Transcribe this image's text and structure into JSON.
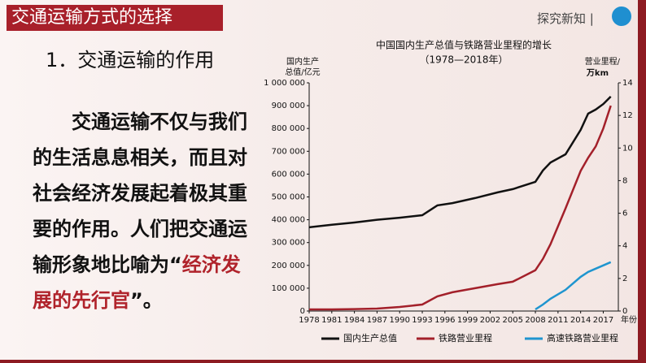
{
  "header": {
    "title": "交通运输方式的选择",
    "tag": "探究新知 |"
  },
  "section": "1．交通运输的作用",
  "paragraph": [
    [
      {
        "text": "交通运输不仅与我们",
        "color": "#111111"
      }
    ],
    [
      {
        "text": "的生活息息相关，而且对",
        "color": "#111111"
      }
    ],
    [
      {
        "text": "社会经济发展起着极其重",
        "color": "#111111"
      }
    ],
    [
      {
        "text": "要的作用。人们把交通运",
        "color": "#111111"
      }
    ],
    [
      {
        "text": "输形象地比喻为“",
        "color": "#111111"
      },
      {
        "text": "经济发",
        "color": "#b0232b"
      }
    ],
    [
      {
        "text": "展的先行官",
        "color": "#b0232b"
      },
      {
        "text": "”。",
        "color": "#111111"
      }
    ]
  ],
  "chart_data": {
    "type": "line",
    "title": "中国国内生产总值与铁路营业里程的增长",
    "subtitle": "（1978—2018年）",
    "ylabel": [
      "国内生产",
      "总值/亿元"
    ],
    "y2label": [
      "营业里程/",
      "万km"
    ],
    "xlabel": "年份",
    "x": [
      1978,
      1981,
      1984,
      1987,
      1990,
      1993,
      1995,
      1997,
      2000,
      2003,
      2005,
      2008,
      2009,
      2010,
      2012,
      2014,
      2015,
      2016,
      2017,
      2018
    ],
    "xlim": [
      1978,
      2019
    ],
    "xticks": [
      1978,
      1981,
      1984,
      1987,
      1990,
      1993,
      1996,
      1999,
      2002,
      2005,
      2008,
      2011,
      2014,
      2017
    ],
    "ylim": [
      0,
      1000000
    ],
    "yticks": [
      {
        "value": 0,
        "label": "0"
      },
      {
        "value": 100000,
        "label": "100 000"
      },
      {
        "value": 200000,
        "label": "200 000"
      },
      {
        "value": 300000,
        "label": "300 000"
      },
      {
        "value": 400000,
        "label": "400 000"
      },
      {
        "value": 500000,
        "label": "500 000"
      },
      {
        "value": 600000,
        "label": "600 000"
      },
      {
        "value": 700000,
        "label": "700 000"
      },
      {
        "value": 800000,
        "label": "800 000"
      },
      {
        "value": 900000,
        "label": "900 000"
      },
      {
        "value": 1000000,
        "label": "1 000 000"
      }
    ],
    "y2lim": [
      0,
      14
    ],
    "y2ticks": [
      0,
      2,
      4,
      6,
      8,
      10,
      12,
      14
    ],
    "series": [
      {
        "name": "国内生产总值",
        "color": "#111111",
        "values": [
          367000,
          378000,
          388000,
          400000,
          409000,
          420000,
          463000,
          473000,
          495000,
          520000,
          534000,
          566000,
          616000,
          651000,
          687000,
          794000,
          865000,
          883000,
          907000,
          940000
        ]
      },
      {
        "name": "铁路营业里程",
        "color": "#a3202a",
        "axis": "y2",
        "values": [
          0.1,
          0.1,
          0.12,
          0.15,
          0.25,
          0.4,
          0.9,
          1.15,
          1.4,
          1.65,
          1.8,
          2.5,
          3.2,
          4.1,
          6.3,
          8.6,
          9.4,
          10.1,
          11.2,
          12.6
        ]
      },
      {
        "name": "高速铁路营业里程",
        "color": "#1f95cf",
        "axis": "y2",
        "values": [
          null,
          null,
          null,
          null,
          null,
          null,
          null,
          null,
          null,
          null,
          null,
          0.1,
          0.4,
          0.75,
          1.3,
          2.1,
          2.4,
          2.6,
          2.8,
          3.0
        ]
      }
    ]
  }
}
